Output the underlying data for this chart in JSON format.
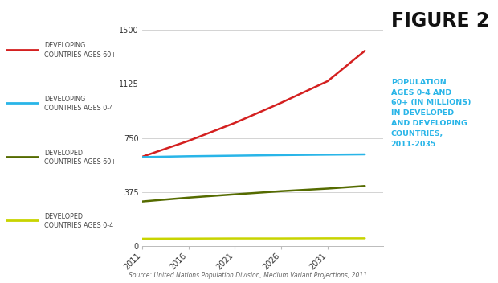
{
  "years": [
    2011,
    2016,
    2021,
    2026,
    2031,
    2035
  ],
  "developing_60plus": [
    620,
    730,
    855,
    995,
    1145,
    1355
  ],
  "developing_0to4": [
    618,
    624,
    628,
    632,
    635,
    637
  ],
  "developed_60plus": [
    310,
    337,
    360,
    382,
    400,
    418
  ],
  "developed_0to4": [
    52,
    53,
    54,
    54,
    55,
    55
  ],
  "line_colors": {
    "developing_60plus": "#d42020",
    "developing_0to4": "#29b5e8",
    "developed_60plus": "#556b00",
    "developed_0to4": "#c8d400"
  },
  "legend_labels": [
    "DEVELOPING\nCOUNTRIES AGES 60+",
    "DEVELOPING\nCOUNTRIES AGES 0-4",
    "DEVELOPED\nCOUNTRIES AGES 60+",
    "DEVELOPED\nCOUNTRIES AGES 0-4"
  ],
  "yticks": [
    0,
    375,
    750,
    1125,
    1500
  ],
  "xtick_labels": [
    "2011",
    "2016",
    "2021",
    "2026",
    "2031"
  ],
  "xtick_positions": [
    2011,
    2016,
    2021,
    2026,
    2031
  ],
  "ylim": [
    0,
    1570
  ],
  "xlim": [
    2011,
    2037
  ],
  "figure2_text": "FIGURE 2",
  "subtitle_text": "POPULATION\nAGES 0-4 AND\n60+ (IN MILLIONS)\nIN DEVELOPED\nAND DEVELOPING\nCOUNTRIES,\n2011-2035",
  "source_text": "Source: United Nations Population Division, Medium Variant Projections, 2011.",
  "bg_color": "#ffffff",
  "line_width": 1.8
}
